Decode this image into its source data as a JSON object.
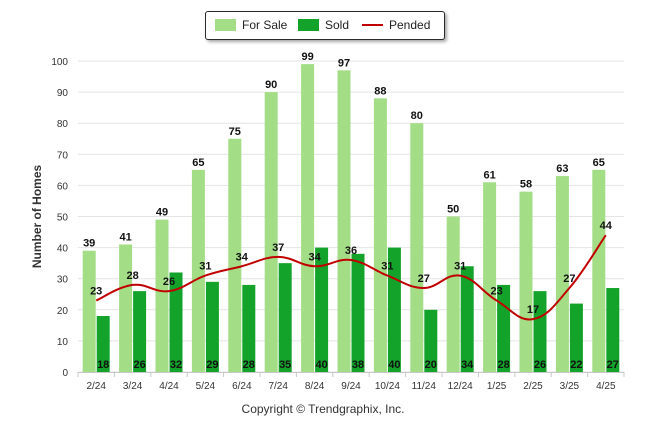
{
  "chart_data": {
    "type": "bar",
    "ylabel": "Number of Homes",
    "ylim": [
      0,
      100
    ],
    "yticks": [
      0,
      10,
      20,
      30,
      40,
      50,
      60,
      70,
      80,
      90,
      100
    ],
    "grid": true,
    "legend_position": "top-center",
    "categories": [
      "2/24",
      "3/24",
      "4/24",
      "5/24",
      "6/24",
      "7/24",
      "8/24",
      "9/24",
      "10/24",
      "11/24",
      "12/24",
      "1/25",
      "2/25",
      "3/25",
      "4/25"
    ],
    "series": [
      {
        "name": "For Sale",
        "type": "bar",
        "color": "#a3dd85",
        "values": [
          39,
          41,
          49,
          65,
          75,
          90,
          99,
          97,
          88,
          80,
          50,
          61,
          58,
          63,
          65
        ]
      },
      {
        "name": "Sold",
        "type": "bar",
        "color": "#13a32a",
        "values": [
          18,
          26,
          32,
          29,
          28,
          35,
          40,
          38,
          40,
          20,
          34,
          28,
          26,
          22,
          27
        ]
      },
      {
        "name": "Pended",
        "type": "line",
        "color": "#c00000",
        "values": [
          23,
          28,
          26,
          31,
          34,
          37,
          34,
          36,
          31,
          27,
          31,
          23,
          17,
          27,
          44
        ]
      }
    ]
  },
  "footer": {
    "copyright": "Copyright © Trendgraphix, Inc."
  }
}
